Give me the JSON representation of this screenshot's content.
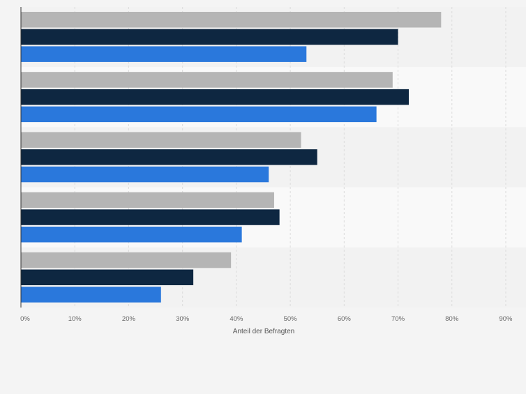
{
  "chart_data": {
    "type": "bar",
    "orientation": "horizontal",
    "categories": [
      "",
      "",
      "",
      "",
      ""
    ],
    "series": [
      {
        "name": "",
        "color": "#b5b5b5",
        "values": [
          78,
          69,
          52,
          47,
          39
        ]
      },
      {
        "name": "",
        "color": "#0e2741",
        "values": [
          70,
          72,
          55,
          48,
          32
        ]
      },
      {
        "name": "",
        "color": "#2a78dc",
        "values": [
          53,
          66,
          46,
          41,
          26
        ]
      }
    ],
    "xlabel": "Anteil der Befragten",
    "ylabel": "",
    "xlim": [
      0,
      90
    ],
    "xticks": [
      0,
      10,
      20,
      30,
      40,
      50,
      60,
      70,
      80,
      90
    ],
    "xtick_labels": [
      "0%",
      "10%",
      "20%",
      "30%",
      "40%",
      "50%",
      "60%",
      "70%",
      "80%",
      "90%"
    ],
    "grid": true,
    "legend": "none",
    "title": ""
  }
}
